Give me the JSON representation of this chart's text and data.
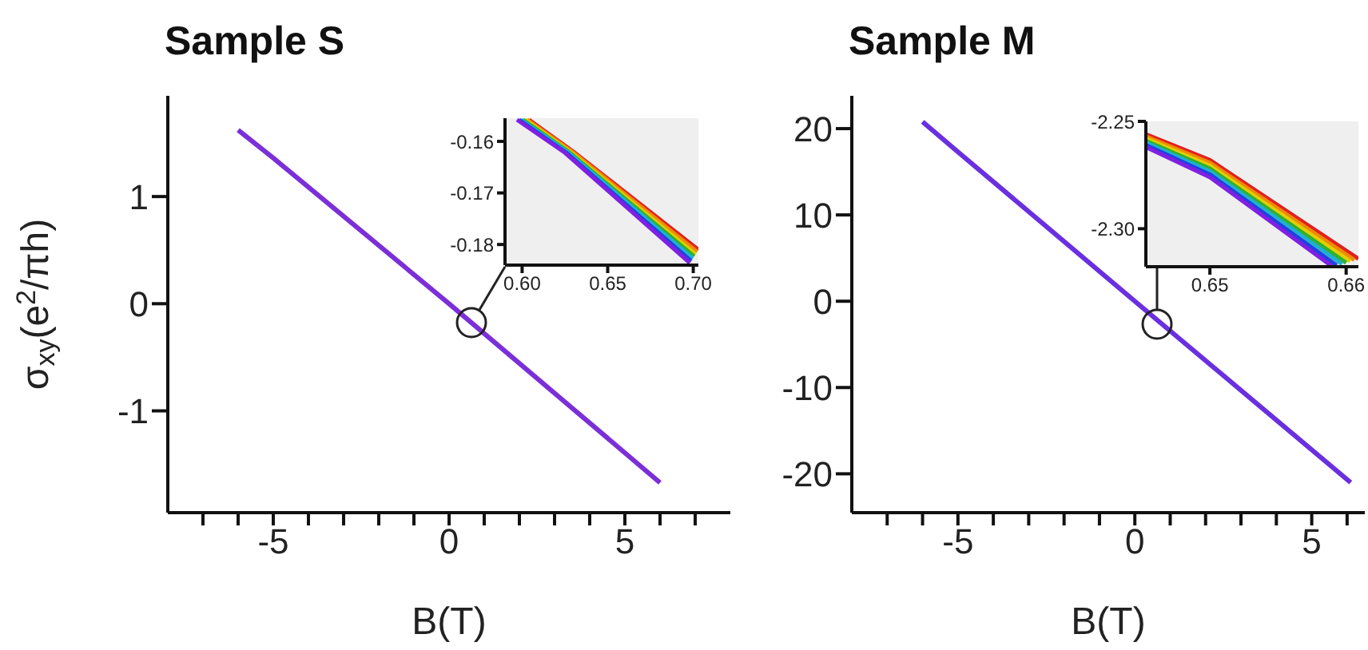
{
  "chart_data": [
    {
      "type": "line",
      "title": "Sample S",
      "xlabel": "B(T)",
      "ylabel": "σ$_{xy}$(e$^{2}$/πh)",
      "xlim": [
        -8,
        8
      ],
      "ylim": [
        -1.95,
        1.94
      ],
      "xticks": [
        {
          "value": -7,
          "label": null
        },
        {
          "value": -6,
          "label": null
        },
        -5,
        {
          "value": -4,
          "label": null
        },
        {
          "value": -3,
          "label": null
        },
        {
          "value": -2,
          "label": null
        },
        {
          "value": -1,
          "label": null
        },
        0,
        {
          "value": 1,
          "label": null
        },
        {
          "value": 2,
          "label": null
        },
        {
          "value": 3,
          "label": null
        },
        {
          "value": 4,
          "label": null
        },
        5,
        {
          "value": 6,
          "label": null
        },
        {
          "value": 7,
          "label": null
        }
      ],
      "yticks": [
        -1,
        0,
        1
      ],
      "grid": false,
      "legend": false,
      "marker": "none",
      "line_style": "solid",
      "series": [
        {
          "color": "#7b2fd8",
          "x": [
            -6,
            -5,
            0,
            6
          ],
          "values": [
            1.62,
            1.36,
            0.0,
            -1.67
          ]
        }
      ]
    },
    {
      "type": "line",
      "xlim": [
        0.59,
        0.703
      ],
      "ylim": [
        -0.184,
        -0.1555
      ],
      "xticks": [
        {
          "value": 0.6,
          "label": "0.60"
        },
        0.65,
        {
          "value": 0.7,
          "label": "0.70"
        }
      ],
      "yticks": [
        -0.18,
        -0.17,
        -0.16
      ],
      "grid": false,
      "legend": false,
      "marker": "none",
      "line_style": "solid",
      "series": [
        {
          "color": "#e02020",
          "x": [
            0.604,
            0.63,
            0.703
          ],
          "values": [
            -0.1558,
            -0.162,
            -0.181
          ]
        },
        {
          "color": "#f08a00",
          "x": [
            0.6028,
            0.6292,
            0.7022
          ],
          "values": [
            -0.1558,
            -0.162,
            -0.1814
          ]
        },
        {
          "color": "#e0d000",
          "x": [
            0.6017,
            0.6283,
            0.7013
          ],
          "values": [
            -0.1558,
            -0.1621,
            -0.1819
          ]
        },
        {
          "color": "#30b030",
          "x": [
            0.6005,
            0.6275,
            0.7005
          ],
          "values": [
            -0.1558,
            -0.1621,
            -0.1823
          ]
        },
        {
          "color": "#20b0d0",
          "x": [
            0.5993,
            0.6267,
            0.6997
          ],
          "values": [
            -0.1558,
            -0.1621,
            -0.1827
          ]
        },
        {
          "color": "#2040e0",
          "x": [
            0.5982,
            0.6258,
            0.6988
          ],
          "values": [
            -0.1558,
            -0.1622,
            -0.1832
          ]
        },
        {
          "color": "#8020e0",
          "x": [
            0.597,
            0.625,
            0.698
          ],
          "values": [
            -0.1558,
            -0.1622,
            -0.1836
          ]
        }
      ]
    },
    {
      "type": "line",
      "title": "Sample M",
      "xlabel": "B(T)",
      "xlim": [
        -8,
        6.5
      ],
      "ylim": [
        -24.5,
        23.8
      ],
      "xticks": [
        {
          "value": -7,
          "label": null
        },
        {
          "value": -6,
          "label": null
        },
        -5,
        {
          "value": -4,
          "label": null
        },
        {
          "value": -3,
          "label": null
        },
        {
          "value": -2,
          "label": null
        },
        {
          "value": -1,
          "label": null
        },
        0,
        {
          "value": 1,
          "label": null
        },
        {
          "value": 2,
          "label": null
        },
        {
          "value": 3,
          "label": null
        },
        {
          "value": 4,
          "label": null
        },
        5,
        {
          "value": 6,
          "label": null
        }
      ],
      "yticks": [
        -20,
        -10,
        0,
        10,
        20
      ],
      "grid": false,
      "legend": false,
      "marker": "none",
      "line_style": "solid",
      "series": [
        {
          "color": "#6a2fe0",
          "x": [
            -6,
            -5,
            0,
            6.1
          ],
          "values": [
            20.8,
            17.3,
            0.0,
            -21.0
          ]
        }
      ]
    },
    {
      "type": "line",
      "xlim": [
        0.6453,
        0.6609
      ],
      "ylim": [
        -2.3177,
        -2.25
      ],
      "xticks": [
        0.65,
        0.66
      ],
      "yticks": [
        {
          "value": -2.3,
          "label": "-2.30"
        },
        -2.25
      ],
      "grid": false,
      "legend": false,
      "marker": "none",
      "line_style": "solid",
      "series": [
        {
          "color": "#e02020",
          "x": [
            0.6453,
            0.65,
            0.6609
          ],
          "values": [
            -2.256,
            -2.268,
            -2.314
          ]
        },
        {
          "color": "#f08a00",
          "x": [
            0.6453,
            0.65,
            0.6606
          ],
          "values": [
            -2.257,
            -2.2693,
            -2.3146
          ]
        },
        {
          "color": "#e0d000",
          "x": [
            0.6453,
            0.65,
            0.6603
          ],
          "values": [
            -2.258,
            -2.2707,
            -2.3152
          ]
        },
        {
          "color": "#30b030",
          "x": [
            0.6453,
            0.65,
            0.66
          ],
          "values": [
            -2.259,
            -2.272,
            -2.3159
          ]
        },
        {
          "color": "#20b0d0",
          "x": [
            0.6453,
            0.65,
            0.6597
          ],
          "values": [
            -2.26,
            -2.2733,
            -2.3165
          ]
        },
        {
          "color": "#2040e0",
          "x": [
            0.6453,
            0.65,
            0.6593
          ],
          "values": [
            -2.261,
            -2.2747,
            -2.3171
          ]
        },
        {
          "color": "#8020e0",
          "x": [
            0.6453,
            0.65,
            0.659
          ],
          "values": [
            -2.262,
            -2.276,
            -2.3177
          ]
        }
      ]
    }
  ]
}
